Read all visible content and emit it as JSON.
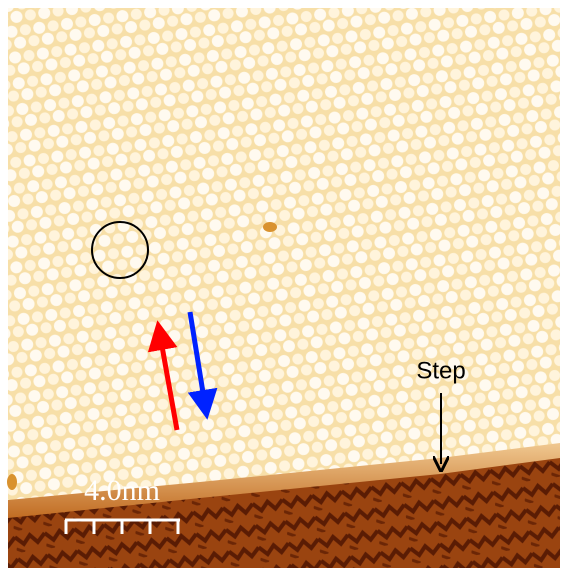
{
  "labels": {
    "step": "Step",
    "scale_bar": "4.0nm"
  }
}
